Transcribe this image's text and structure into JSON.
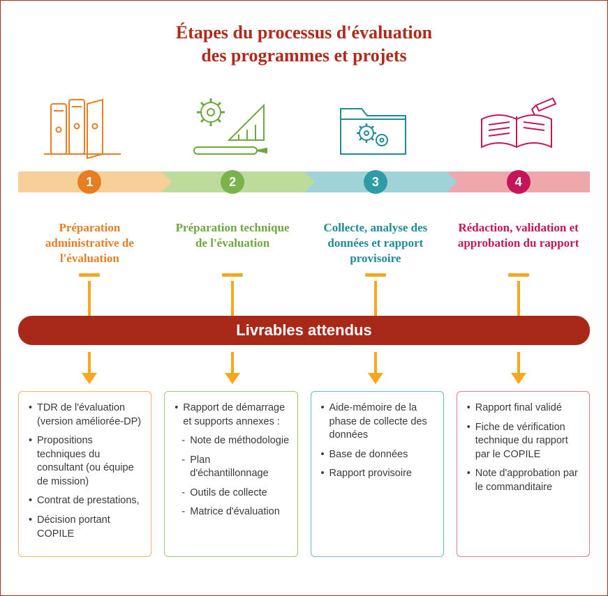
{
  "title_line1": "Étapes du processus d'évaluation",
  "title_line2": "des programmes et projets",
  "colors": {
    "border": "#b02a1c",
    "title": "#b02a1c",
    "arrow": "#f7a71b",
    "bar_bg": "#a8281a",
    "bar_text": "#ffffff"
  },
  "deliverables_label": "Livrables attendus",
  "steps": [
    {
      "num": "1",
      "chevron_color": "#f7cf99",
      "badge_color": "#e77e22",
      "text_color": "#e77e22",
      "box_border": "#f2b46b",
      "title": "Préparation administrative de l'évaluation",
      "items": [
        {
          "t": "TDR de l'évaluation (version améliorée-DP)"
        },
        {
          "t": "Propositions techniques du consultant (ou équipe de mission)"
        },
        {
          "t": "Contrat de prestations,"
        },
        {
          "t": "Décision portant COPILE"
        }
      ]
    },
    {
      "num": "2",
      "chevron_color": "#bddb9a",
      "badge_color": "#7ab24c",
      "text_color": "#6ea63f",
      "box_border": "#9ec978",
      "title": "Préparation technique de l'évaluation",
      "items": [
        {
          "t": "Rapport de démarrage et supports annexes :"
        },
        {
          "t": "Note de méthodologie",
          "sub": true
        },
        {
          "t": "Plan d'échantillonnage",
          "sub": true
        },
        {
          "t": "Outils de collecte",
          "sub": true
        },
        {
          "t": "Matrice d'évaluation",
          "sub": true
        }
      ]
    },
    {
      "num": "3",
      "chevron_color": "#9fd3d7",
      "badge_color": "#2f9ba6",
      "text_color": "#1f8b97",
      "box_border": "#6cbac2",
      "title": "Collecte, analyse des données et rapport provisoire",
      "items": [
        {
          "t": "Aide-mémoire de la phase de collecte des données"
        },
        {
          "t": "Base de données"
        },
        {
          "t": "Rapport provisoire"
        }
      ]
    },
    {
      "num": "4",
      "chevron_color": "#efa7ab",
      "badge_color": "#c4155a",
      "text_color": "#c4155a",
      "box_border": "#e57b84",
      "title": "Rédaction, validation et approbation du rapport",
      "items": [
        {
          "t": "Rapport final validé"
        },
        {
          "t": "Fiche de vérification technique du rapport par le COPILE"
        },
        {
          "t": "Note d'approbation par le commanditaire"
        }
      ]
    }
  ]
}
